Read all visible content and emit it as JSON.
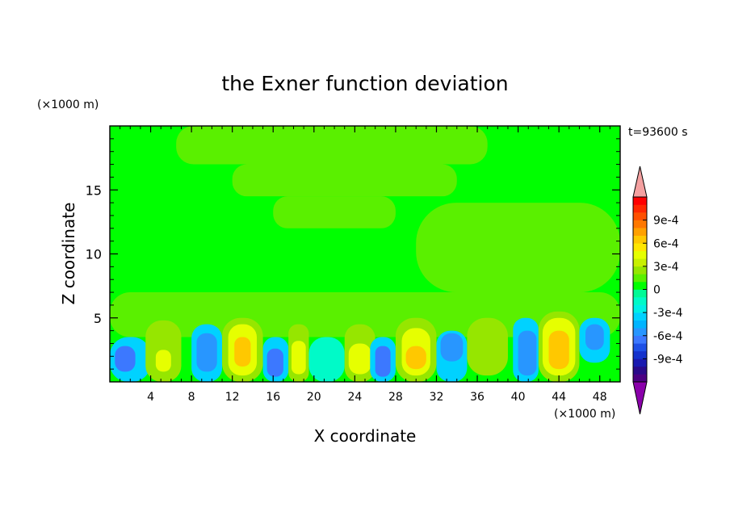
{
  "chart_data": {
    "type": "heatmap",
    "title": "the Exner function deviation",
    "xlabel": "X coordinate",
    "ylabel": "Z coordinate",
    "x_unit": "(×1000 m)",
    "y_unit": "(×1000 m)",
    "time_label": "t=93600 s",
    "xlim": [
      0,
      50
    ],
    "ylim": [
      0,
      20
    ],
    "x_ticks": [
      4,
      8,
      12,
      16,
      20,
      24,
      28,
      32,
      36,
      40,
      44,
      48
    ],
    "y_ticks": [
      5,
      10,
      15
    ],
    "colorbar": {
      "levels": [
        -0.0012,
        -0.0011,
        -0.001,
        -0.0009,
        -0.0008,
        -0.0007,
        -0.0006,
        -0.0005,
        -0.0004,
        -0.0003,
        -0.0002,
        -0.0001,
        0,
        0.0001,
        0.0002,
        0.0003,
        0.0004,
        0.0005,
        0.0006,
        0.0007,
        0.0008,
        0.0009,
        0.001,
        0.0011,
        0.0012
      ],
      "tick_values": [
        -0.0009,
        -0.0006,
        -0.0003,
        0,
        0.0003,
        0.0006,
        0.0009
      ],
      "tick_labels": [
        "-9e-4",
        "-6e-4",
        "-3e-4",
        "0",
        "3e-4",
        "6e-4",
        "9e-4"
      ],
      "colors": [
        "#4b0082",
        "#2a0a8a",
        "#1a1ab0",
        "#1432cc",
        "#1e50e6",
        "#3c78ff",
        "#2896ff",
        "#00b4ff",
        "#00d2ff",
        "#00f0e6",
        "#00fac8",
        "#00fa96",
        "#00ff00",
        "#5af000",
        "#96e600",
        "#c8f000",
        "#e6ff00",
        "#ffe600",
        "#ffc800",
        "#ffa000",
        "#ff7800",
        "#ff5000",
        "#ff2800",
        "#ff0000"
      ],
      "under_color": "#8a00aa",
      "over_color": "#f4a0a0"
    },
    "cells": [
      {
        "x": [
          0,
          50
        ],
        "z": [
          0,
          20
        ],
        "value": 5e-05
      },
      {
        "x": [
          6.5,
          37
        ],
        "z": [
          17,
          20
        ],
        "value": 0.00015
      },
      {
        "x": [
          12,
          34
        ],
        "z": [
          14.5,
          17
        ],
        "value": 0.00015
      },
      {
        "x": [
          16,
          28
        ],
        "z": [
          12,
          14.5
        ],
        "value": 0.00015
      },
      {
        "x": [
          30,
          50
        ],
        "z": [
          7,
          14
        ],
        "value": 0.00015
      },
      {
        "x": [
          0,
          50
        ],
        "z": [
          3.5,
          7
        ],
        "value": 0.00015
      },
      {
        "x": [
          0,
          4
        ],
        "z": [
          0,
          3.5
        ],
        "value": -0.00035
      },
      {
        "x": [
          0.5,
          2.5
        ],
        "z": [
          0.8,
          2.8
        ],
        "value": -0.00065
      },
      {
        "x": [
          3.5,
          7
        ],
        "z": [
          0,
          4.8
        ],
        "value": 0.00025
      },
      {
        "x": [
          4.5,
          6
        ],
        "z": [
          0.8,
          2.5
        ],
        "value": 0.00045
      },
      {
        "x": [
          8,
          11
        ],
        "z": [
          0,
          4.5
        ],
        "value": -0.00035
      },
      {
        "x": [
          8.5,
          10.5
        ],
        "z": [
          0.8,
          3.8
        ],
        "value": -0.00055
      },
      {
        "x": [
          11,
          15
        ],
        "z": [
          0,
          5
        ],
        "value": 0.00025
      },
      {
        "x": [
          11.6,
          14.4
        ],
        "z": [
          0.5,
          4.5
        ],
        "value": 0.00045
      },
      {
        "x": [
          12.2,
          13.8
        ],
        "z": [
          1.2,
          3.5
        ],
        "value": 0.00065
      },
      {
        "x": [
          15,
          17.5
        ],
        "z": [
          0,
          3.5
        ],
        "value": -0.00035
      },
      {
        "x": [
          15.4,
          17
        ],
        "z": [
          0.4,
          2.6
        ],
        "value": -0.00065
      },
      {
        "x": [
          17.5,
          19.5
        ],
        "z": [
          0,
          4.5
        ],
        "value": 0.00025
      },
      {
        "x": [
          17.8,
          19.2
        ],
        "z": [
          0.6,
          3.2
        ],
        "value": 0.00045
      },
      {
        "x": [
          19.5,
          23
        ],
        "z": [
          0,
          3.5
        ],
        "value": -0.00015
      },
      {
        "x": [
          23,
          26
        ],
        "z": [
          0,
          4.5
        ],
        "value": 0.00025
      },
      {
        "x": [
          23.4,
          25.6
        ],
        "z": [
          0.6,
          3
        ],
        "value": 0.00045
      },
      {
        "x": [
          25.5,
          28
        ],
        "z": [
          0,
          3.5
        ],
        "value": -0.00035
      },
      {
        "x": [
          26,
          27.5
        ],
        "z": [
          0.4,
          2.8
        ],
        "value": -0.00065
      },
      {
        "x": [
          28,
          32
        ],
        "z": [
          0,
          5
        ],
        "value": 0.00025
      },
      {
        "x": [
          28.6,
          31.4
        ],
        "z": [
          0.5,
          4.2
        ],
        "value": 0.00045
      },
      {
        "x": [
          29,
          31
        ],
        "z": [
          1,
          2.8
        ],
        "value": 0.00065
      },
      {
        "x": [
          32,
          35
        ],
        "z": [
          0,
          4
        ],
        "value": -0.00035
      },
      {
        "x": [
          32.4,
          34.6
        ],
        "z": [
          1.6,
          3.8
        ],
        "value": -0.00055
      },
      {
        "x": [
          35,
          39
        ],
        "z": [
          0.5,
          5
        ],
        "value": 0.00025
      },
      {
        "x": [
          39.5,
          42
        ],
        "z": [
          0,
          5
        ],
        "value": -0.00035
      },
      {
        "x": [
          40,
          41.8
        ],
        "z": [
          0.5,
          4
        ],
        "value": -0.00055
      },
      {
        "x": [
          42,
          46
        ],
        "z": [
          0,
          5.5
        ],
        "value": 0.00025
      },
      {
        "x": [
          42.4,
          45.6
        ],
        "z": [
          0.5,
          5
        ],
        "value": 0.00045
      },
      {
        "x": [
          43,
          45
        ],
        "z": [
          1,
          4
        ],
        "value": 0.00065
      },
      {
        "x": [
          46,
          49
        ],
        "z": [
          1.5,
          5
        ],
        "value": -0.00035
      },
      {
        "x": [
          46.6,
          48.4
        ],
        "z": [
          2.5,
          4.5
        ],
        "value": -0.00055
      }
    ]
  }
}
